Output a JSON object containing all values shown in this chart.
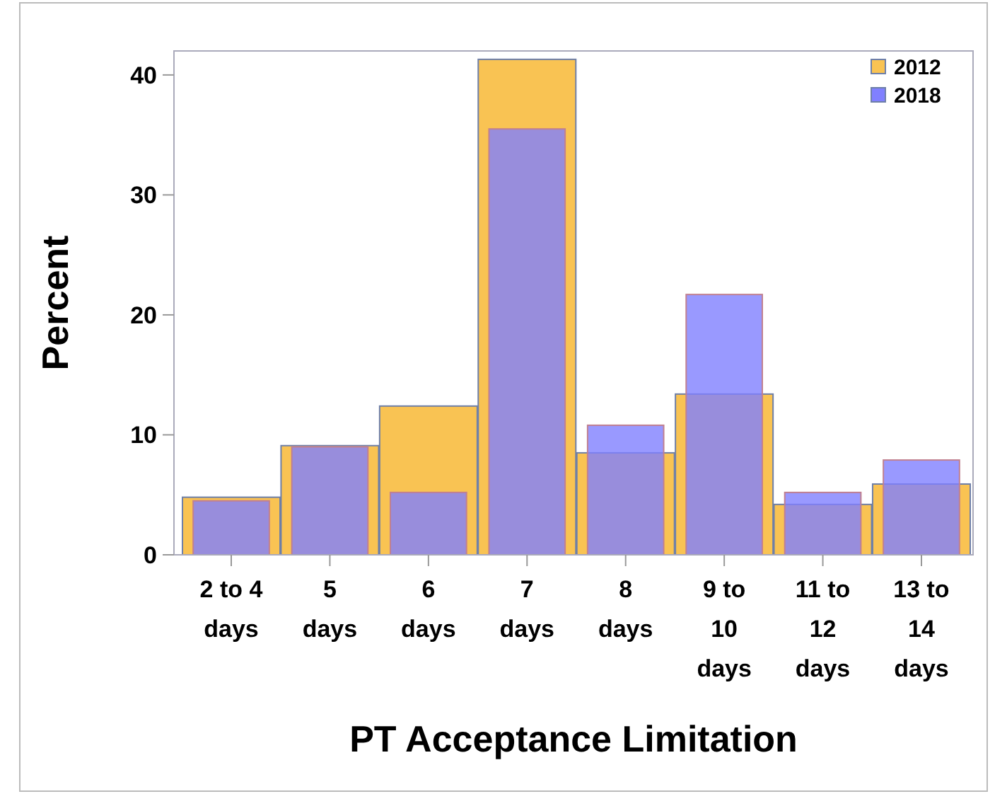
{
  "chart_data": {
    "type": "bar",
    "xlabel": "PT Acceptance Limitation",
    "ylabel": "Percent",
    "categories": [
      "2 to 4 days",
      "5 days",
      "6 days",
      "7 days",
      "8 days",
      "9 to 10 days",
      "11 to 12 days",
      "13 to 14 days"
    ],
    "series": [
      {
        "name": "2012",
        "color": "#f9c353",
        "values": [
          4.8,
          9.1,
          12.4,
          41.3,
          8.5,
          13.4,
          4.2,
          5.9
        ]
      },
      {
        "name": "2018",
        "color": "#8080ff",
        "values": [
          4.5,
          9.0,
          5.2,
          35.5,
          10.8,
          21.7,
          5.2,
          7.9
        ]
      }
    ],
    "ylim": [
      0,
      42
    ],
    "yticks": [
      0,
      10,
      20,
      30,
      40
    ],
    "grid": false,
    "legend": "top right"
  }
}
